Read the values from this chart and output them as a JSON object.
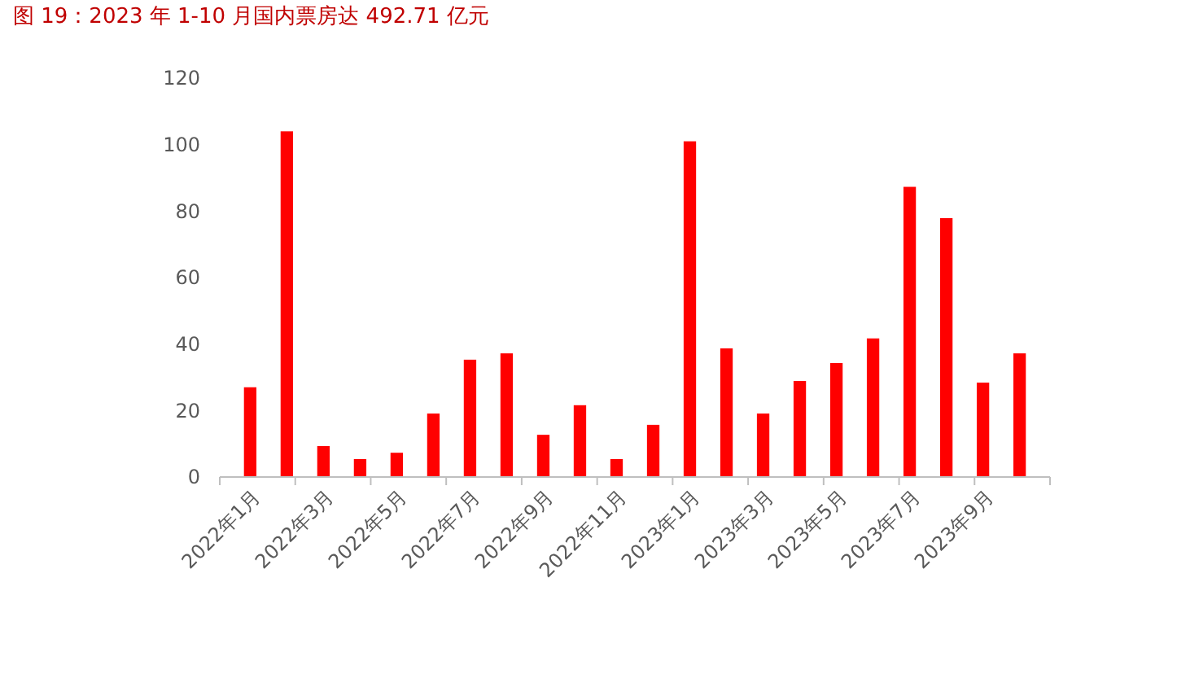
{
  "chart_data": {
    "type": "bar",
    "title": "图 19：2023 年 1-10 月国内票房达 492.71 亿元",
    "categories": [
      "2022年1月",
      null,
      "2022年3月",
      null,
      "2022年5月",
      null,
      "2022年7月",
      null,
      "2022年9月",
      null,
      "2022年11月",
      null,
      "2023年1月",
      null,
      "2023年3月",
      null,
      "2023年5月",
      null,
      "2023年7月",
      null,
      "2023年9月",
      null
    ],
    "values": [
      27,
      104,
      9.3,
      5.4,
      7.3,
      19.1,
      35.3,
      37.2,
      12.7,
      21.6,
      5.4,
      15.7,
      101,
      38.7,
      19.1,
      28.9,
      34.3,
      41.7,
      87.3,
      77.9,
      28.4,
      37.2
    ],
    "color": "#ff0000",
    "ylim": [
      0,
      120
    ],
    "yticks": [
      0,
      20,
      40,
      60,
      80,
      100,
      120
    ],
    "grid": false
  }
}
